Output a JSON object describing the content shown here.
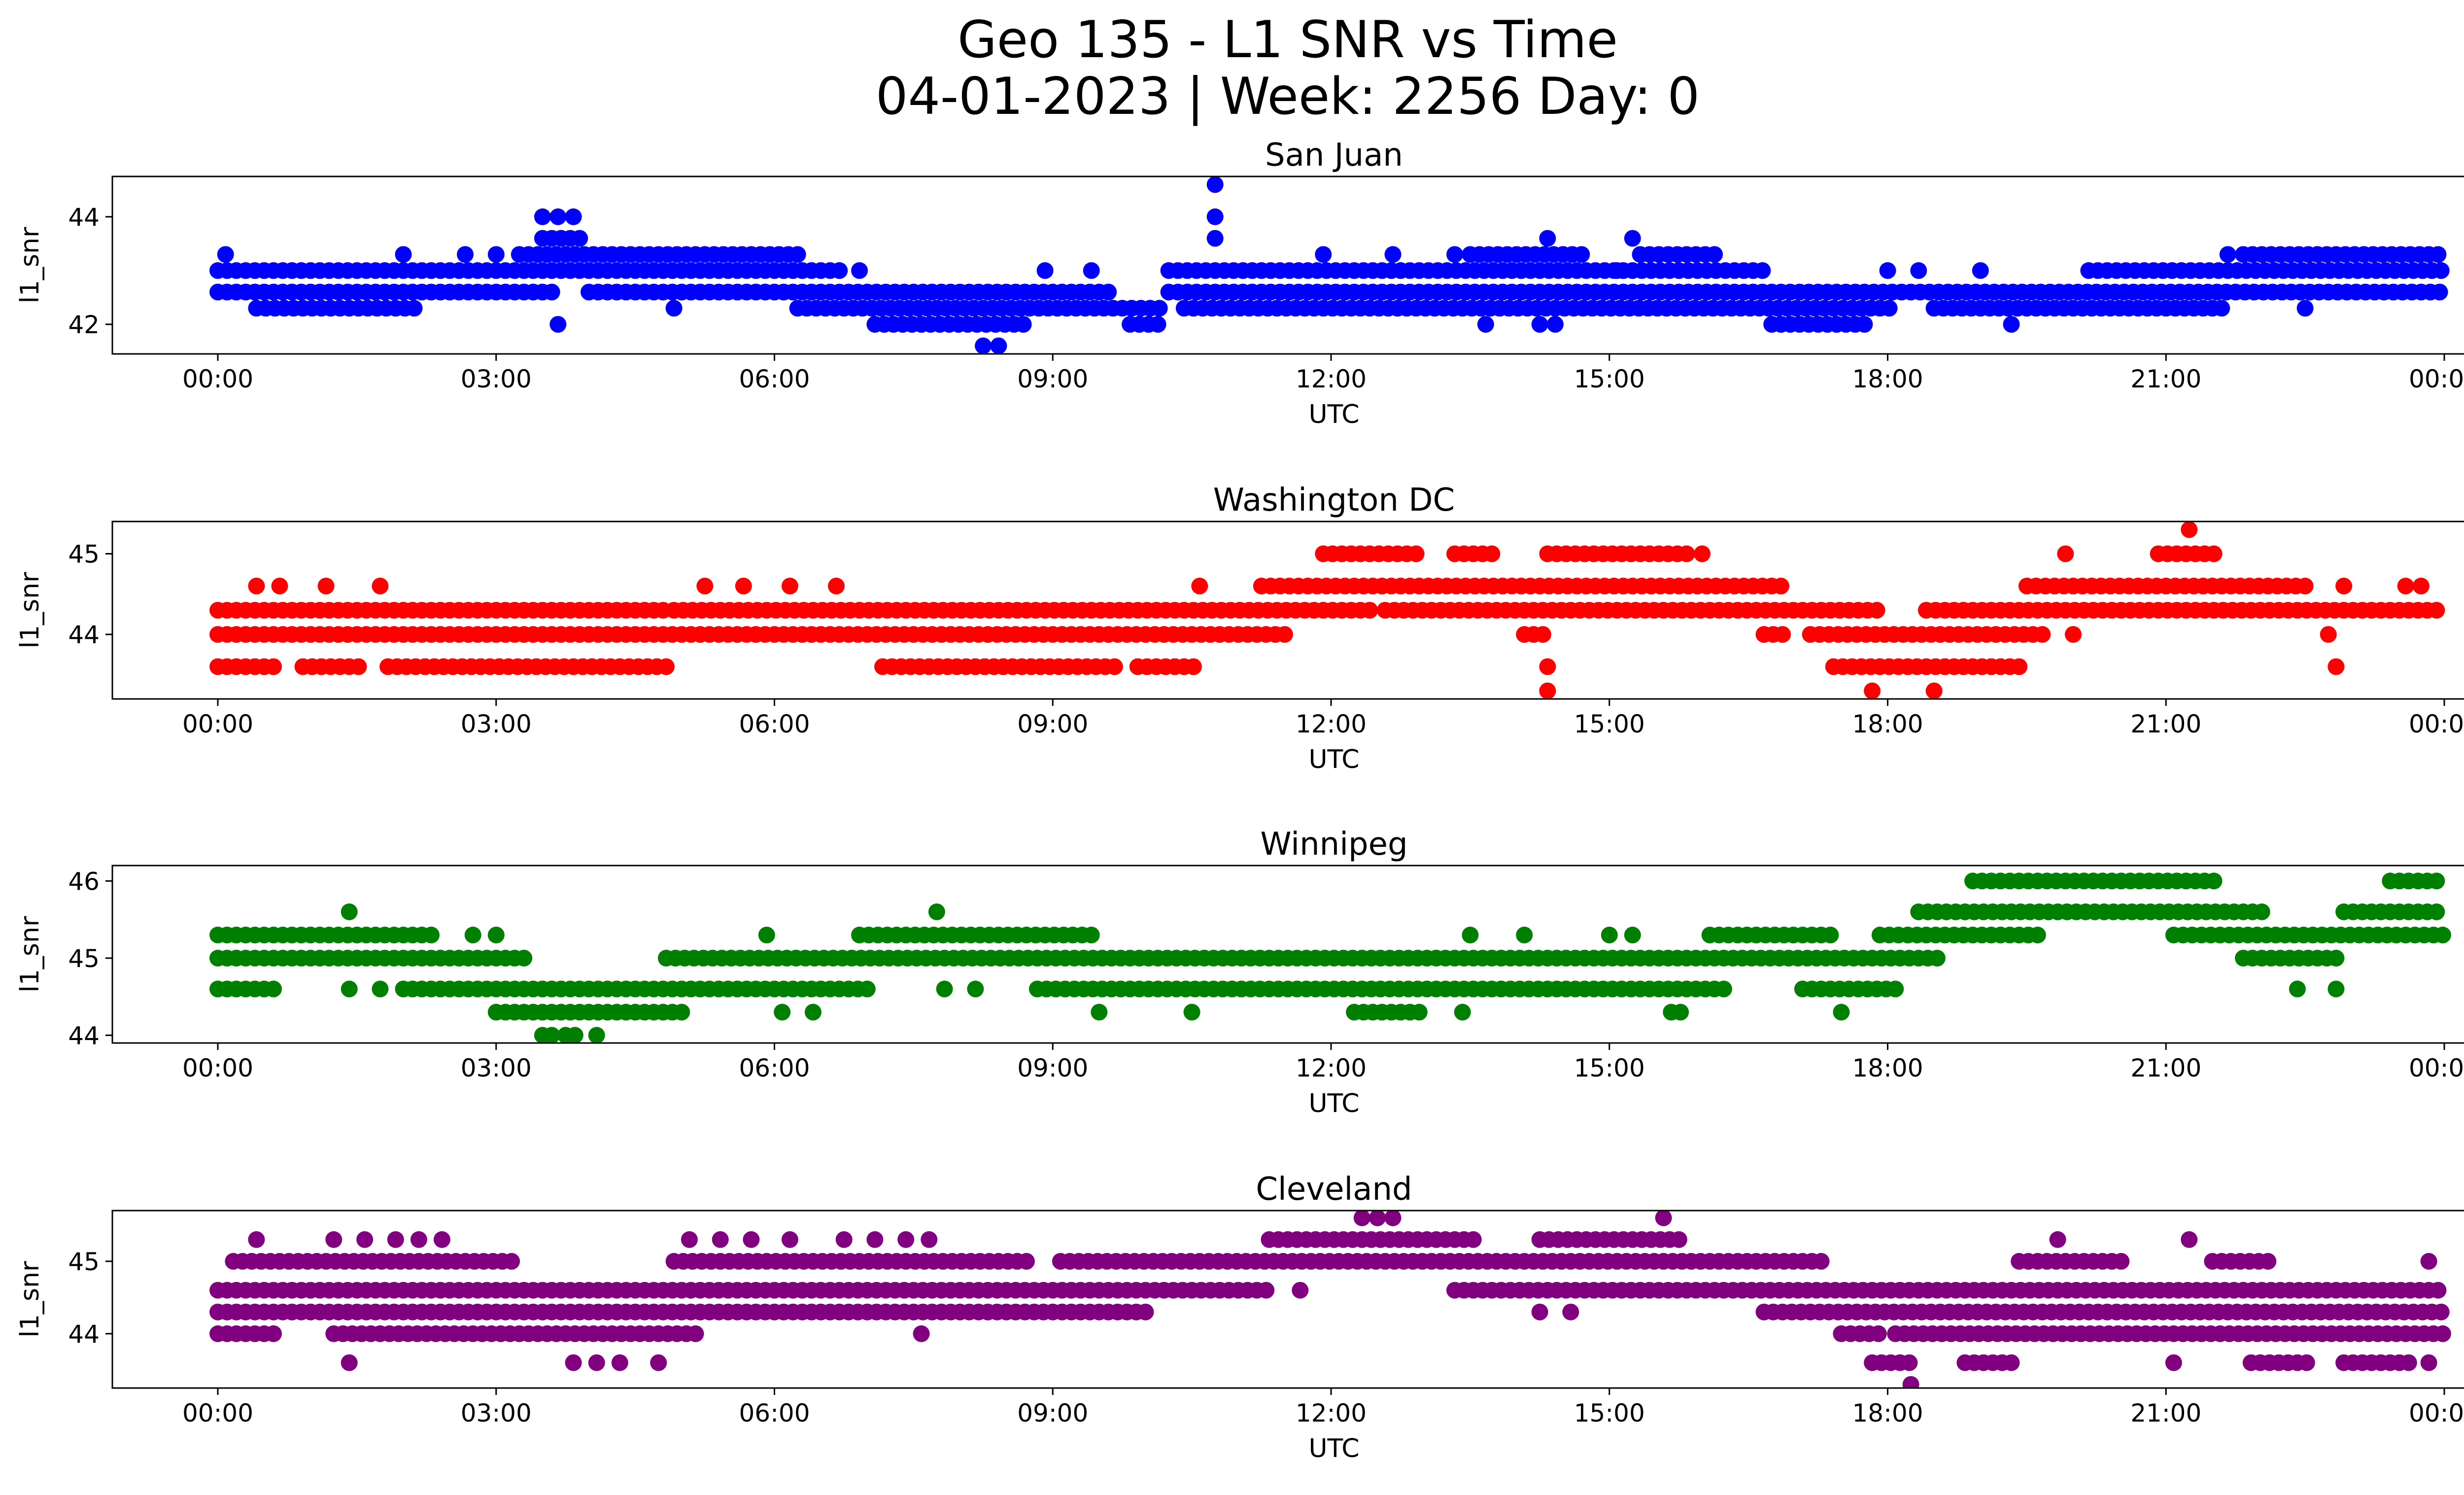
{
  "figure": {
    "title_line1": "Geo 135 - L1 SNR vs Time",
    "title_line2": "04-01-2023 | Week: 2256 Day: 0"
  },
  "chart_data": [
    {
      "type": "scatter",
      "title": "San Juan",
      "xlabel": "UTC",
      "ylabel": "l1_snr",
      "color": "#0000ff",
      "x_ticks": [
        "00:00",
        "03:00",
        "06:00",
        "09:00",
        "12:00",
        "15:00",
        "18:00",
        "21:00",
        "00:00"
      ],
      "xlim": [
        "00:00",
        "24:00"
      ],
      "y_ticks": [
        42,
        44
      ],
      "ylim": [
        41.45,
        44.75
      ],
      "bands": [
        {
          "y": 42.0,
          "segments": [
            [
              "07:05",
              "08:45"
            ],
            [
              "09:50",
              "10:10"
            ],
            [
              "16:45",
              "17:50"
            ]
          ]
        },
        {
          "y": 42.3,
          "segments": [
            [
              "00:25",
              "02:10"
            ],
            [
              "06:15",
              "10:10"
            ],
            [
              "10:25",
              "18:05"
            ],
            [
              "18:30",
              "21:40"
            ]
          ]
        },
        {
          "y": 42.6,
          "segments": [
            [
              "00:00",
              "03:40"
            ],
            [
              "04:00",
              "09:40"
            ],
            [
              "10:15",
              "24:00"
            ]
          ]
        },
        {
          "y": 43.0,
          "segments": [
            [
              "00:00",
              "06:45"
            ],
            [
              "10:15",
              "16:40"
            ],
            [
              "20:10",
              "24:00"
            ]
          ]
        },
        {
          "y": 43.3,
          "segments": [
            [
              "03:15",
              "06:15"
            ],
            [
              "13:30",
              "14:45"
            ],
            [
              "15:20",
              "16:10"
            ],
            [
              "21:50",
              "24:00"
            ]
          ]
        },
        {
          "y": 43.6,
          "segments": [
            [
              "03:30",
              "03:55"
            ]
          ]
        }
      ],
      "points": [
        [
          "00:05",
          43.3
        ],
        [
          "02:00",
          43.3
        ],
        [
          "02:40",
          43.3
        ],
        [
          "03:00",
          43.3
        ],
        [
          "03:30",
          44.0
        ],
        [
          "03:40",
          44.0
        ],
        [
          "03:50",
          44.0
        ],
        [
          "03:40",
          42.0
        ],
        [
          "04:55",
          42.3
        ],
        [
          "06:55",
          43.0
        ],
        [
          "08:15",
          41.6
        ],
        [
          "08:25",
          41.6
        ],
        [
          "08:55",
          43.0
        ],
        [
          "09:25",
          43.0
        ],
        [
          "10:45",
          43.6
        ],
        [
          "10:45",
          44.0
        ],
        [
          "10:45",
          44.6
        ],
        [
          "11:55",
          43.3
        ],
        [
          "12:40",
          43.3
        ],
        [
          "13:20",
          43.3
        ],
        [
          "13:40",
          42.0
        ],
        [
          "14:15",
          42.0
        ],
        [
          "14:25",
          42.0
        ],
        [
          "14:20",
          43.6
        ],
        [
          "15:15",
          43.6
        ],
        [
          "15:05",
          43.0
        ],
        [
          "18:00",
          43.0
        ],
        [
          "18:20",
          43.0
        ],
        [
          "19:00",
          43.0
        ],
        [
          "19:20",
          42.0
        ],
        [
          "22:30",
          42.3
        ],
        [
          "21:40",
          43.3
        ]
      ]
    },
    {
      "type": "scatter",
      "title": "Washington DC",
      "xlabel": "UTC",
      "ylabel": "l1_snr",
      "color": "#ff0000",
      "x_ticks": [
        "00:00",
        "03:00",
        "06:00",
        "09:00",
        "12:00",
        "15:00",
        "18:00",
        "21:00",
        "00:00"
      ],
      "xlim": [
        "00:00",
        "24:00"
      ],
      "y_ticks": [
        44,
        45
      ],
      "ylim": [
        43.2,
        45.4
      ],
      "bands": [
        {
          "y": 43.6,
          "segments": [
            [
              "00:00",
              "00:40"
            ],
            [
              "00:55",
              "01:35"
            ],
            [
              "01:50",
              "04:50"
            ],
            [
              "07:10",
              "09:40"
            ],
            [
              "09:55",
              "10:35"
            ],
            [
              "17:25",
              "19:25"
            ]
          ]
        },
        {
          "y": 44.0,
          "segments": [
            [
              "00:00",
              "11:30"
            ],
            [
              "14:05",
              "14:20"
            ],
            [
              "16:40",
              "16:55"
            ],
            [
              "17:10",
              "19:45"
            ]
          ]
        },
        {
          "y": 44.3,
          "segments": [
            [
              "00:00",
              "04:50"
            ],
            [
              "04:55",
              "12:25"
            ],
            [
              "12:35",
              "17:55"
            ],
            [
              "18:25",
              "24:00"
            ]
          ]
        },
        {
          "y": 44.6,
          "segments": [
            [
              "11:15",
              "16:55"
            ],
            [
              "19:30",
              "22:35"
            ]
          ]
        },
        {
          "y": 45.0,
          "segments": [
            [
              "11:55",
              "12:55"
            ],
            [
              "13:20",
              "13:45"
            ],
            [
              "14:20",
              "15:50"
            ],
            [
              "20:55",
              "21:35"
            ]
          ]
        }
      ],
      "points": [
        [
          "00:25",
          44.6
        ],
        [
          "00:40",
          44.6
        ],
        [
          "01:10",
          44.6
        ],
        [
          "01:45",
          44.6
        ],
        [
          "05:15",
          44.6
        ],
        [
          "05:40",
          44.6
        ],
        [
          "06:10",
          44.6
        ],
        [
          "06:40",
          44.6
        ],
        [
          "10:35",
          44.6
        ],
        [
          "14:20",
          43.6
        ],
        [
          "14:20",
          43.3
        ],
        [
          "16:00",
          45.0
        ],
        [
          "17:50",
          43.3
        ],
        [
          "18:30",
          43.3
        ],
        [
          "19:55",
          45.0
        ],
        [
          "20:00",
          44.0
        ],
        [
          "21:15",
          45.3
        ],
        [
          "22:55",
          44.6
        ],
        [
          "22:45",
          44.0
        ],
        [
          "22:50",
          43.6
        ],
        [
          "23:35",
          44.6
        ],
        [
          "23:45",
          44.6
        ]
      ]
    },
    {
      "type": "scatter",
      "title": "Winnipeg",
      "xlabel": "UTC",
      "ylabel": "l1_snr",
      "color": "#008000",
      "x_ticks": [
        "00:00",
        "03:00",
        "06:00",
        "09:00",
        "12:00",
        "15:00",
        "18:00",
        "21:00",
        "00:00"
      ],
      "xlim": [
        "00:00",
        "24:00"
      ],
      "y_ticks": [
        44,
        45,
        46
      ],
      "ylim": [
        43.9,
        46.2
      ],
      "bands": [
        {
          "y": 44.0,
          "segments": [
            [
              "03:30",
              "03:40"
            ],
            [
              "03:45",
              "03:55"
            ],
            [
              "04:05",
              "04:10"
            ]
          ]
        },
        {
          "y": 44.3,
          "segments": [
            [
              "03:00",
              "05:00"
            ],
            [
              "12:15",
              "13:00"
            ],
            [
              "15:40",
              "15:50"
            ]
          ]
        },
        {
          "y": 44.6,
          "segments": [
            [
              "00:00",
              "00:40"
            ],
            [
              "02:00",
              "07:05"
            ],
            [
              "08:50",
              "16:15"
            ],
            [
              "17:05",
              "18:05"
            ]
          ]
        },
        {
          "y": 45.0,
          "segments": [
            [
              "00:00",
              "03:20"
            ],
            [
              "04:50",
              "18:35"
            ],
            [
              "21:50",
              "22:50"
            ]
          ]
        },
        {
          "y": 45.3,
          "segments": [
            [
              "00:00",
              "02:20"
            ],
            [
              "06:55",
              "09:25"
            ],
            [
              "16:05",
              "17:25"
            ],
            [
              "17:55",
              "19:40"
            ],
            [
              "21:05",
              "24:00"
            ]
          ]
        },
        {
          "y": 45.6,
          "segments": [
            [
              "18:20",
              "22:05"
            ],
            [
              "22:55",
              "24:00"
            ]
          ]
        },
        {
          "y": 46.0,
          "segments": [
            [
              "18:55",
              "21:35"
            ],
            [
              "23:25",
              "24:00"
            ]
          ]
        }
      ],
      "points": [
        [
          "01:25",
          45.6
        ],
        [
          "01:25",
          44.6
        ],
        [
          "01:45",
          44.6
        ],
        [
          "02:45",
          45.3
        ],
        [
          "03:00",
          45.3
        ],
        [
          "05:55",
          45.3
        ],
        [
          "06:05",
          44.3
        ],
        [
          "06:25",
          44.3
        ],
        [
          "07:45",
          45.6
        ],
        [
          "07:50",
          44.6
        ],
        [
          "08:10",
          44.6
        ],
        [
          "09:30",
          44.3
        ],
        [
          "10:30",
          44.3
        ],
        [
          "13:25",
          44.3
        ],
        [
          "13:30",
          45.3
        ],
        [
          "14:05",
          45.3
        ],
        [
          "15:00",
          45.3
        ],
        [
          "15:15",
          45.3
        ],
        [
          "17:30",
          44.3
        ],
        [
          "22:25",
          44.6
        ],
        [
          "22:50",
          44.6
        ]
      ]
    },
    {
      "type": "scatter",
      "title": "Cleveland",
      "xlabel": "UTC",
      "ylabel": "l1_snr",
      "color": "#800080",
      "x_ticks": [
        "00:00",
        "03:00",
        "06:00",
        "09:00",
        "12:00",
        "15:00",
        "18:00",
        "21:00",
        "00:00"
      ],
      "xlim": [
        "00:00",
        "24:00"
      ],
      "y_ticks": [
        44,
        45
      ],
      "ylim": [
        43.25,
        45.7
      ],
      "bands": [
        {
          "y": 43.6,
          "segments": [
            [
              "17:50",
              "18:15"
            ],
            [
              "18:50",
              "19:25"
            ],
            [
              "21:55",
              "22:35"
            ],
            [
              "22:55",
              "23:40"
            ]
          ]
        },
        {
          "y": 44.0,
          "segments": [
            [
              "00:00",
              "00:40"
            ],
            [
              "01:15",
              "05:10"
            ],
            [
              "17:30",
              "17:55"
            ],
            [
              "18:05",
              "24:00"
            ]
          ]
        },
        {
          "y": 44.3,
          "segments": [
            [
              "00:00",
              "09:55"
            ],
            [
              "16:40",
              "24:00"
            ]
          ]
        },
        {
          "y": 44.6,
          "segments": [
            [
              "00:00",
              "11:20"
            ],
            [
              "13:20",
              "24:00"
            ]
          ]
        },
        {
          "y": 45.0,
          "segments": [
            [
              "00:10",
              "03:10"
            ],
            [
              "04:55",
              "08:45"
            ],
            [
              "09:05",
              "17:20"
            ],
            [
              "19:25",
              "20:35"
            ],
            [
              "21:30",
              "22:10"
            ]
          ]
        },
        {
          "y": 45.3,
          "segments": [
            [
              "11:20",
              "13:35"
            ],
            [
              "14:15",
              "15:50"
            ]
          ]
        }
      ],
      "points": [
        [
          "00:25",
          45.3
        ],
        [
          "01:15",
          45.3
        ],
        [
          "01:35",
          45.3
        ],
        [
          "01:55",
          45.3
        ],
        [
          "02:10",
          45.3
        ],
        [
          "02:25",
          45.3
        ],
        [
          "05:05",
          45.3
        ],
        [
          "05:25",
          45.3
        ],
        [
          "05:45",
          45.3
        ],
        [
          "06:10",
          45.3
        ],
        [
          "06:45",
          45.3
        ],
        [
          "07:05",
          45.3
        ],
        [
          "07:25",
          45.3
        ],
        [
          "07:40",
          45.3
        ],
        [
          "01:25",
          43.6
        ],
        [
          "03:50",
          43.6
        ],
        [
          "04:05",
          43.6
        ],
        [
          "04:20",
          43.6
        ],
        [
          "04:45",
          43.6
        ],
        [
          "07:35",
          44.0
        ],
        [
          "10:00",
          44.3
        ],
        [
          "11:40",
          44.6
        ],
        [
          "12:20",
          45.6
        ],
        [
          "12:30",
          45.6
        ],
        [
          "12:40",
          45.6
        ],
        [
          "14:15",
          44.3
        ],
        [
          "14:35",
          44.3
        ],
        [
          "15:35",
          45.6
        ],
        [
          "18:15",
          43.3
        ],
        [
          "19:50",
          45.3
        ],
        [
          "21:15",
          45.3
        ],
        [
          "21:05",
          43.6
        ],
        [
          "23:50",
          45.0
        ],
        [
          "23:50",
          43.6
        ]
      ]
    }
  ]
}
